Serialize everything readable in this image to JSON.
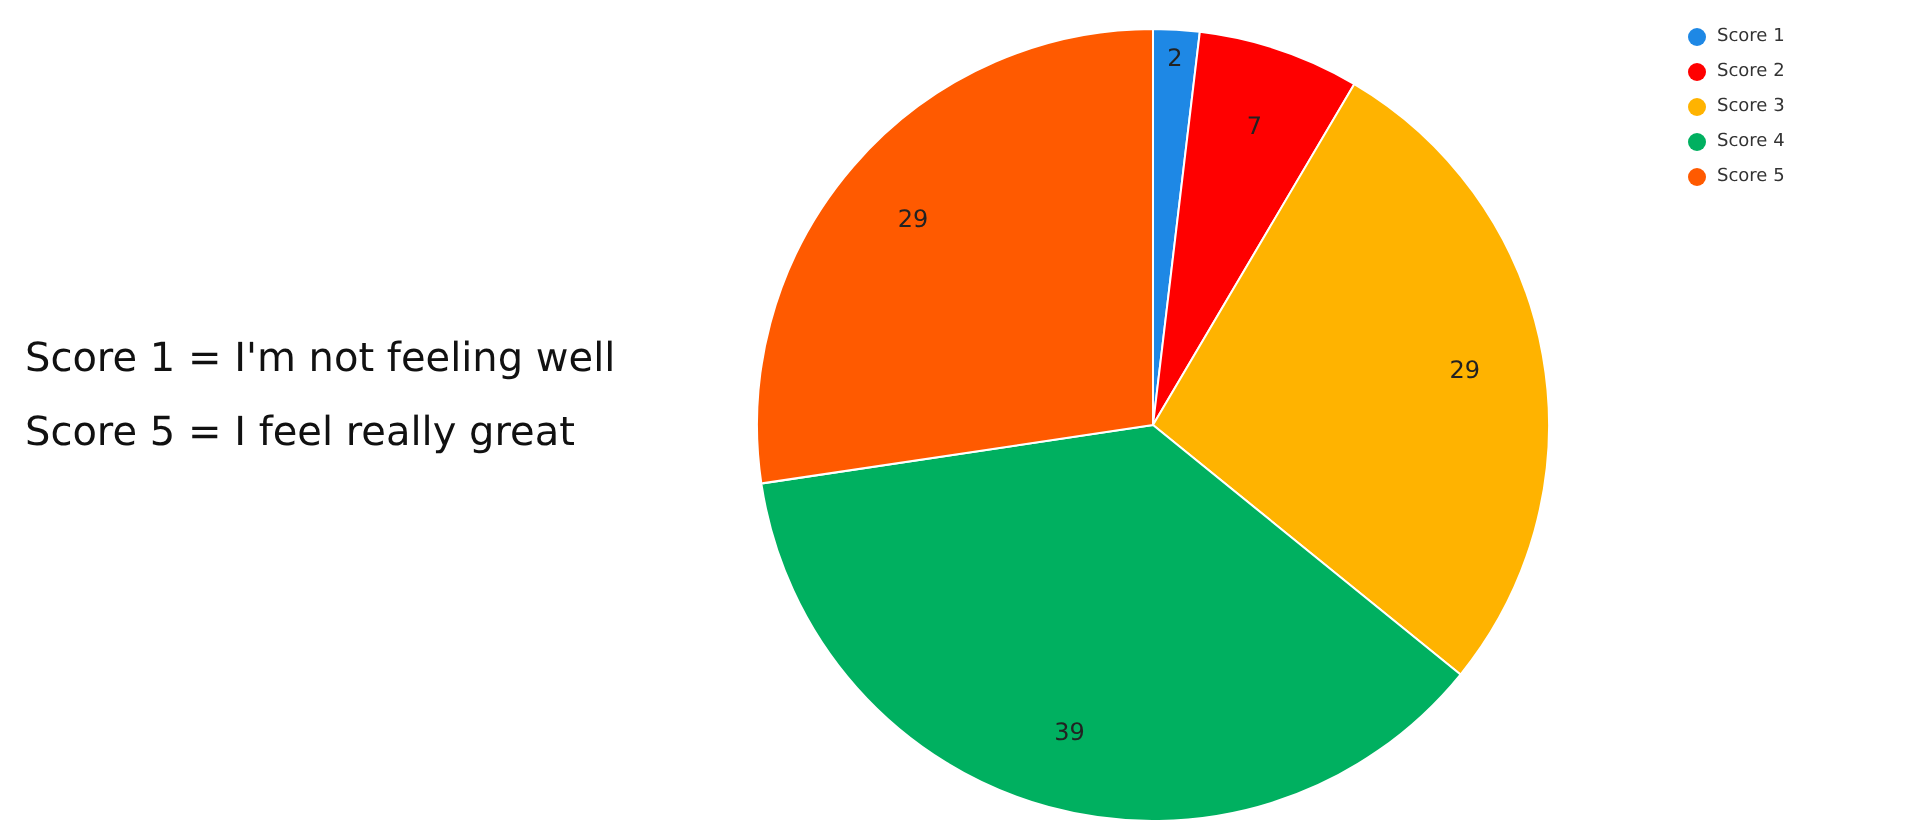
{
  "chart_data": {
    "type": "pie",
    "categories": [
      "Score 1",
      "Score 2",
      "Score 3",
      "Score 4",
      "Score 5"
    ],
    "values": [
      2,
      7,
      29,
      39,
      29
    ],
    "colors": [
      "#1e88e5",
      "#ff0000",
      "#ffb300",
      "#00b060",
      "#ff5a00"
    ],
    "data_labels": true,
    "legend": "top right",
    "annotations": [
      "Score 1 = I'm not feeling well",
      "Score 5 = I feel really great"
    ]
  }
}
